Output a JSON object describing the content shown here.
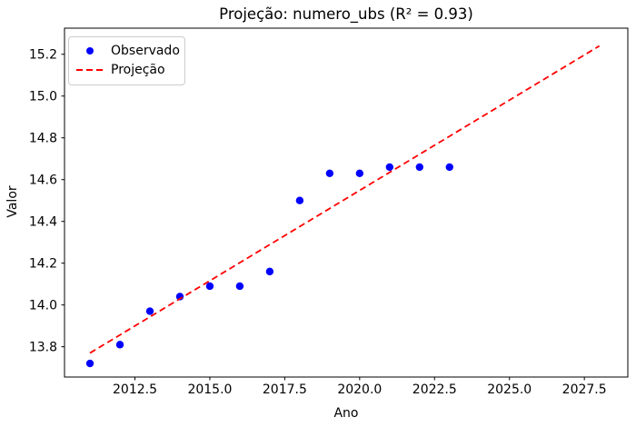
{
  "figure": {
    "title": "Projeção: numero_ubs (R² = 0.93)",
    "xlabel": "Ano",
    "ylabel": "Valor"
  },
  "legend": {
    "items": [
      {
        "label": "Observado",
        "marker": "dot-icon",
        "color": "#0000ff"
      },
      {
        "label": "Projeção",
        "marker": "dashed-line-icon",
        "color": "#ff0000"
      }
    ]
  },
  "chart_data": {
    "type": "scatter",
    "title": "Projeção: numero_ubs (R² = 0.93)",
    "xlabel": "Ano",
    "ylabel": "Valor",
    "xlim": [
      2010.15,
      2028.95
    ],
    "ylim": [
      13.655,
      15.325
    ],
    "x_ticks": [
      2012.5,
      2015.0,
      2017.5,
      2020.0,
      2022.5,
      2025.0,
      2027.5
    ],
    "x_tick_labels": [
      "2012.5",
      "2015.0",
      "2017.5",
      "2020.0",
      "2022.5",
      "2025.0",
      "2027.5"
    ],
    "y_ticks": [
      13.8,
      14.0,
      14.2,
      14.4,
      14.6,
      14.8,
      15.0,
      15.2
    ],
    "y_tick_labels": [
      "13.8",
      "14.0",
      "14.2",
      "14.4",
      "14.6",
      "14.8",
      "15.0",
      "15.2"
    ],
    "grid": false,
    "legend_position": "upper left",
    "series": [
      {
        "name": "Observado",
        "type": "scatter",
        "color": "#0000ff",
        "x": [
          2011,
          2012,
          2013,
          2014,
          2015,
          2016,
          2017,
          2018,
          2019,
          2020,
          2021,
          2022,
          2023
        ],
        "y": [
          13.72,
          13.81,
          13.97,
          14.04,
          14.09,
          14.09,
          14.16,
          14.5,
          14.63,
          14.63,
          14.66,
          14.66,
          14.66
        ]
      },
      {
        "name": "Projeção",
        "type": "line",
        "linestyle": "dashed",
        "color": "#ff0000",
        "x": [
          2011,
          2028
        ],
        "y": [
          13.77,
          15.24
        ]
      }
    ]
  },
  "colors": {
    "observado": "#0000ff",
    "projecao": "#ff0000",
    "spine": "#000000",
    "background": "#ffffff",
    "legend_border": "#cccccc"
  }
}
